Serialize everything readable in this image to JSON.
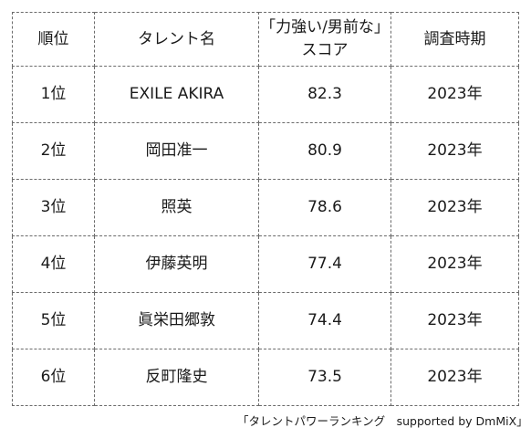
{
  "table": {
    "headers": {
      "rank": "順位",
      "talent": "タレント名",
      "score_line1": "「力強い/男前な」",
      "score_line2": "スコア",
      "period": "調査時期"
    },
    "rows": [
      {
        "rank": "1位",
        "name": "EXILE AKIRA",
        "score": "82.3",
        "period": "2023年"
      },
      {
        "rank": "2位",
        "name": "岡田准一",
        "score": "80.9",
        "period": "2023年"
      },
      {
        "rank": "3位",
        "name": "照英",
        "score": "78.6",
        "period": "2023年"
      },
      {
        "rank": "4位",
        "name": "伊藤英明",
        "score": "77.4",
        "period": "2023年"
      },
      {
        "rank": "5位",
        "name": "眞栄田郷敦",
        "score": "74.4",
        "period": "2023年"
      },
      {
        "rank": "6位",
        "name": "反町隆史",
        "score": "73.5",
        "period": "2023年"
      }
    ]
  },
  "source": "「タレントパワーランキング　supported by DmMiX」"
}
